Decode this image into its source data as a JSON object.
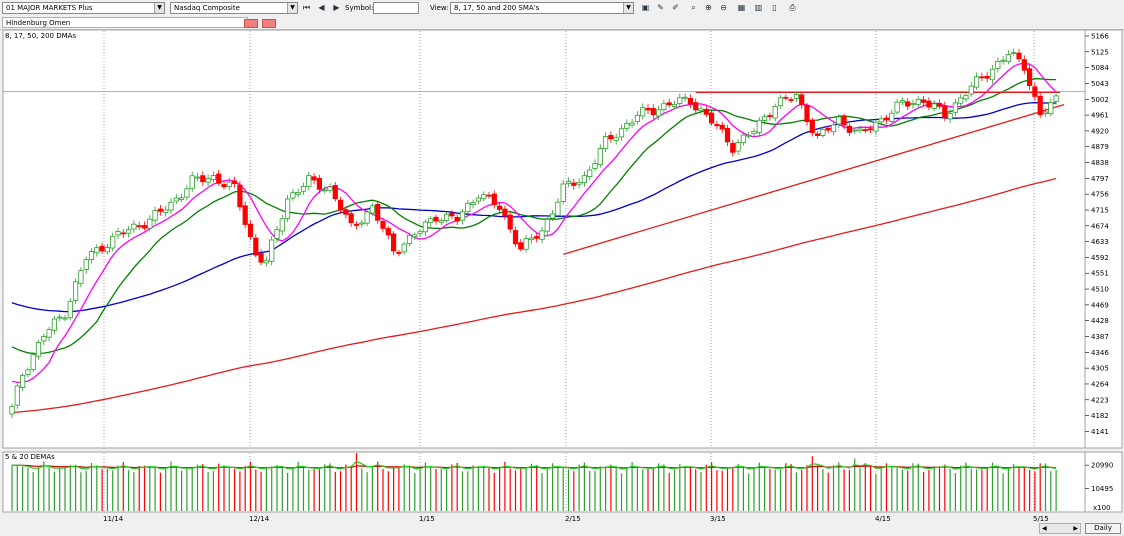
{
  "toolbar": {
    "list_value": "01 MAJOR MARKETS Plus",
    "symbol_value": "Nasdaq Composite",
    "symbol_label": "Symbol:",
    "symbol_input": "",
    "view_label": "View:",
    "view_value": "8, 17, 50 and 200 SMA's"
  },
  "study_bar": {
    "value": "Hindenburg Omen"
  },
  "price_panel": {
    "title": "8, 17, 50, 200 DMAs",
    "yticks": [
      "5166",
      "5125",
      "5084",
      "5043",
      "5002",
      "4961",
      "4920",
      "4879",
      "4838",
      "4797",
      "4756",
      "4715",
      "4674",
      "4633",
      "4592",
      "4551",
      "4510",
      "4469",
      "4428",
      "4387",
      "4346",
      "4305",
      "4264",
      "4223",
      "4182",
      "4141"
    ]
  },
  "volume_panel": {
    "title": "5 & 20 DEMAs",
    "yticks": [
      "20990",
      "10495"
    ],
    "multiplier": "x100"
  },
  "xaxis": {
    "labels": [
      "11/14",
      "12/14",
      "1/15",
      "2/15",
      "3/15",
      "4/15",
      "5/15"
    ]
  },
  "timeframe": "Daily",
  "colors": {
    "up": "#2ca02c",
    "down": "#ff0000",
    "sma8": "#ff00ff",
    "sma17": "#008000",
    "sma50": "#0000cd",
    "sma200": "#e41a1c",
    "trend": "#e41a1c"
  },
  "chart_data": {
    "type": "candlestick",
    "title": "8, 17, 50, 200 DMAs",
    "ylim": [
      4100,
      5200
    ],
    "x_labels": [
      "11/14",
      "12/14",
      "1/15",
      "2/15",
      "3/15",
      "4/15",
      "5/15"
    ],
    "overlays": [
      "8-day SMA",
      "17-day SMA",
      "50-day SMA",
      "200-day SMA"
    ],
    "close_anchors": [
      [
        0,
        4200
      ],
      [
        2,
        4290
      ],
      [
        6,
        4390
      ],
      [
        10,
        4450
      ],
      [
        14,
        4590
      ],
      [
        20,
        4650
      ],
      [
        26,
        4690
      ],
      [
        30,
        4730
      ],
      [
        34,
        4790
      ],
      [
        38,
        4800
      ],
      [
        42,
        4770
      ],
      [
        46,
        4600
      ],
      [
        48,
        4580
      ],
      [
        52,
        4745
      ],
      [
        56,
        4790
      ],
      [
        60,
        4770
      ],
      [
        64,
        4670
      ],
      [
        68,
        4720
      ],
      [
        72,
        4610
      ],
      [
        76,
        4650
      ],
      [
        80,
        4700
      ],
      [
        84,
        4690
      ],
      [
        88,
        4760
      ],
      [
        92,
        4720
      ],
      [
        96,
        4615
      ],
      [
        100,
        4660
      ],
      [
        104,
        4770
      ],
      [
        108,
        4800
      ],
      [
        112,
        4890
      ],
      [
        118,
        4960
      ],
      [
        124,
        4990
      ],
      [
        128,
        5000
      ],
      [
        132,
        4945
      ],
      [
        136,
        4880
      ],
      [
        140,
        4920
      ],
      [
        144,
        4990
      ],
      [
        148,
        5010
      ],
      [
        152,
        4900
      ],
      [
        156,
        4950
      ],
      [
        160,
        4910
      ],
      [
        164,
        4950
      ],
      [
        168,
        4990
      ],
      [
        172,
        5000
      ],
      [
        176,
        4960
      ],
      [
        180,
        5020
      ],
      [
        184,
        5070
      ],
      [
        188,
        5120
      ],
      [
        191,
        5090
      ],
      [
        194,
        4960
      ],
      [
        197,
        5000
      ]
    ],
    "volume": {
      "series": [
        "5-day DEMA",
        "20-day DEMA"
      ],
      "typical": 21000,
      "ticks": [
        20990,
        10495
      ],
      "multiplier": 100
    },
    "horizontal_resistance": 5020,
    "support_trendline": {
      "from": [
        104,
        4600
      ],
      "to": [
        197,
        4970
      ]
    }
  }
}
